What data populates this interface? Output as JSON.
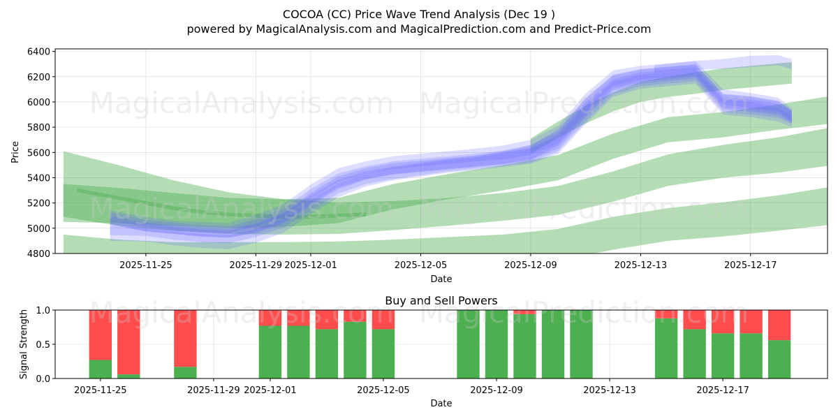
{
  "header": {
    "title": "COCOA (CC) Price Wave Trend Analysis (Dec 19 )",
    "subtitle": "powered by MagicalAnalysis.com and MagicalPrediction.com and Predict-Price.com"
  },
  "watermarks": [
    "MagicalAnalysis.com",
    "MagicalPrediction.com"
  ],
  "colors": {
    "buy": "#4caf50",
    "sell": "#ff4d4d",
    "wave_blue": "#6666ff",
    "wave_green": "#4caf50"
  },
  "chart_data": [
    {
      "type": "area",
      "xlabel": "Date",
      "ylabel": "Price",
      "ylim": [
        4800,
        6420
      ],
      "xlim": [
        -3.3,
        24.8
      ],
      "grid": true,
      "x_ticks": [
        {
          "pos": 0,
          "label": "2025-11-25"
        },
        {
          "pos": 4,
          "label": "2025-11-29"
        },
        {
          "pos": 6,
          "label": "2025-12-01"
        },
        {
          "pos": 10,
          "label": "2025-12-05"
        },
        {
          "pos": 14,
          "label": "2025-12-09"
        },
        {
          "pos": 18,
          "label": "2025-12-13"
        },
        {
          "pos": 22,
          "label": "2025-12-17"
        }
      ],
      "y_ticks": [
        4800,
        5000,
        5200,
        5400,
        5600,
        5800,
        6000,
        6200,
        6400
      ],
      "blue_bands": [
        {
          "x": [
            -1.3,
            0,
            1,
            2,
            3,
            4,
            5,
            6,
            7,
            8,
            9,
            10,
            11,
            12,
            13,
            14,
            15,
            16,
            17,
            18,
            19,
            20,
            21,
            22,
            23,
            23.5
          ],
          "y": [
            5080,
            5020,
            5000,
            4980,
            4970,
            5020,
            5100,
            5250,
            5380,
            5440,
            5480,
            5500,
            5520,
            5540,
            5560,
            5600,
            5700,
            5950,
            6150,
            6200,
            6220,
            6240,
            6000,
            5980,
            5950,
            5880
          ],
          "w": [
            90,
            90,
            90,
            90,
            90,
            100,
            110,
            120,
            110,
            100,
            100,
            100,
            100,
            100,
            110,
            120,
            140,
            150,
            120,
            110,
            110,
            110,
            120,
            120,
            110,
            100
          ]
        },
        {
          "x": [
            -1.3,
            0,
            1,
            2,
            3,
            4,
            5,
            6,
            7,
            8,
            9,
            10,
            11,
            12,
            13,
            14,
            15,
            16,
            17,
            18,
            19,
            20,
            21,
            22,
            23,
            23.5
          ],
          "y": [
            5000,
            4990,
            4960,
            4940,
            4930,
            4980,
            5060,
            5200,
            5330,
            5400,
            5440,
            5470,
            5500,
            5520,
            5550,
            5580,
            5680,
            5920,
            6120,
            6180,
            6200,
            6220,
            5980,
            5960,
            5930,
            5880
          ],
          "w": [
            110,
            100,
            100,
            100,
            100,
            100,
            110,
            120,
            110,
            100,
            100,
            100,
            100,
            100,
            110,
            120,
            140,
            150,
            120,
            110,
            110,
            110,
            120,
            120,
            110,
            100
          ]
        },
        {
          "x": [
            -1.3,
            0,
            1,
            2,
            3,
            4,
            5,
            6,
            7,
            8,
            9,
            10,
            11,
            12,
            13,
            14,
            15,
            16,
            17,
            18,
            19,
            20,
            21,
            22,
            23,
            23.5
          ],
          "y": [
            5100,
            5050,
            5020,
            5010,
            5000,
            5060,
            5140,
            5290,
            5420,
            5480,
            5520,
            5540,
            5560,
            5580,
            5600,
            5640,
            5740,
            5990,
            6190,
            6230,
            6250,
            6270,
            6040,
            6010,
            5980,
            5900
          ],
          "w": [
            80,
            80,
            80,
            80,
            80,
            90,
            100,
            110,
            110,
            100,
            100,
            100,
            100,
            100,
            110,
            120,
            140,
            150,
            120,
            110,
            110,
            110,
            120,
            120,
            110,
            100
          ]
        },
        {
          "x": [
            -1.3,
            0,
            1,
            2,
            3,
            4,
            5,
            6,
            7,
            8,
            9,
            10,
            11,
            12,
            13,
            14,
            15,
            16,
            17,
            18,
            19,
            20,
            21,
            22,
            23,
            23.5
          ],
          "y": [
            4960,
            4950,
            4920,
            4900,
            4890,
            4940,
            5020,
            5170,
            5300,
            5380,
            5430,
            5460,
            5490,
            5510,
            5540,
            5570,
            5660,
            5900,
            6100,
            6160,
            6180,
            6200,
            5960,
            5940,
            5900,
            5850
          ],
          "w": [
            120,
            110,
            110,
            110,
            110,
            110,
            110,
            120,
            110,
            100,
            100,
            100,
            100,
            100,
            110,
            120,
            140,
            150,
            120,
            110,
            110,
            110,
            120,
            120,
            110,
            100
          ]
        },
        {
          "x": [
            -1.3,
            0,
            1,
            2,
            3,
            4,
            5,
            6,
            7,
            8,
            9,
            10,
            11,
            12,
            13,
            14,
            15,
            16,
            17,
            18,
            19,
            20,
            21,
            22,
            23,
            23.5
          ],
          "y": [
            5060,
            5010,
            4990,
            4970,
            4960,
            5000,
            5080,
            5230,
            5360,
            5430,
            5470,
            5490,
            5510,
            5530,
            5560,
            5600,
            5720,
            5960,
            6160,
            6210,
            6230,
            6250,
            6010,
            5990,
            5960,
            5890
          ],
          "w": [
            70,
            70,
            70,
            70,
            70,
            80,
            90,
            100,
            100,
            90,
            90,
            90,
            90,
            90,
            100,
            110,
            130,
            140,
            110,
            100,
            100,
            100,
            110,
            110,
            100,
            90
          ]
        },
        {
          "x": [
            18.5,
            20,
            21,
            22,
            23,
            23.5
          ],
          "y": [
            6260,
            6290,
            6300,
            6320,
            6330,
            6300
          ],
          "w": [
            60,
            70,
            80,
            90,
            80,
            80
          ]
        }
      ],
      "green_bands": [
        {
          "x": [
            -3.0,
            -1,
            1,
            3,
            5,
            7,
            9,
            11,
            13,
            15,
            17,
            19,
            21,
            23,
            25
          ],
          "y": [
            5350,
            5260,
            5180,
            5120,
            5090,
            5080,
            5100,
            5130,
            5170,
            5220,
            5330,
            5460,
            5530,
            5580,
            5650
          ],
          "w": [
            520,
            480,
            400,
            330,
            280,
            250,
            230,
            220,
            220,
            230,
            240,
            250,
            260,
            280,
            300
          ]
        },
        {
          "x": [
            -3.0,
            -1,
            1,
            3,
            5,
            7,
            9,
            11,
            13,
            15,
            17,
            19,
            21,
            23,
            25
          ],
          "y": [
            5200,
            5180,
            5150,
            5120,
            5120,
            5140,
            5250,
            5330,
            5400,
            5480,
            5650,
            5780,
            5820,
            5880,
            5940
          ],
          "w": [
            300,
            280,
            260,
            240,
            220,
            200,
            200,
            200,
            200,
            200,
            200,
            200,
            200,
            200,
            220
          ]
        },
        {
          "x": [
            -3.0,
            -1,
            1,
            3,
            5,
            7,
            9,
            11,
            13,
            15,
            17,
            19,
            21,
            23,
            25
          ],
          "y": [
            4870,
            4810,
            4770,
            4760,
            4760,
            4770,
            4790,
            4810,
            4830,
            4870,
            4960,
            5030,
            5070,
            5120,
            5180
          ],
          "w": [
            160,
            200,
            240,
            260,
            260,
            250,
            240,
            240,
            240,
            250,
            260,
            260,
            270,
            280,
            300
          ]
        },
        {
          "x": [
            -2.5,
            -1,
            1,
            2,
            3,
            4,
            5,
            6,
            7,
            8
          ],
          "y": [
            5300,
            5240,
            5160,
            5130,
            5110,
            5100,
            5090,
            5090,
            5100,
            5110
          ],
          "w": [
            30,
            30,
            30,
            30,
            30,
            30,
            30,
            30,
            30,
            30
          ]
        },
        {
          "x": [
            14,
            15,
            16,
            17,
            18,
            19,
            20,
            21,
            22,
            23,
            23.5
          ],
          "y": [
            5650,
            5780,
            5900,
            6000,
            6080,
            6120,
            6150,
            6180,
            6200,
            6220,
            6230
          ],
          "w": [
            120,
            130,
            140,
            150,
            160,
            160,
            170,
            170,
            170,
            170,
            170
          ]
        }
      ]
    },
    {
      "type": "bar",
      "title": "Buy and Sell Powers",
      "xlabel": "Date",
      "ylabel": "Signal Strength",
      "ylim": [
        0,
        1
      ],
      "xlim": [
        -1.6,
        25.7
      ],
      "y_ticks": [
        {
          "value": 0,
          "label": "0.0"
        },
        {
          "value": 0.5,
          "label": "0.5"
        },
        {
          "value": 1,
          "label": "1.0"
        }
      ],
      "x_ticks": [
        {
          "pos": 0,
          "label": "2025-11-25"
        },
        {
          "pos": 4,
          "label": "2025-11-29"
        },
        {
          "pos": 6,
          "label": "2025-12-01"
        },
        {
          "pos": 10,
          "label": "2025-12-05"
        },
        {
          "pos": 14,
          "label": "2025-12-09"
        },
        {
          "pos": 18,
          "label": "2025-12-13"
        },
        {
          "pos": 22,
          "label": "2025-12-17"
        }
      ],
      "series_names": [
        "Buy",
        "Sell"
      ],
      "bars": [
        {
          "x": 0,
          "date": "2025-11-25",
          "buy": 0.27
        },
        {
          "x": 1,
          "date": "2025-11-26",
          "buy": 0.06
        },
        {
          "x": 3,
          "date": "2025-11-28",
          "buy": 0.17
        },
        {
          "x": 6,
          "date": "2025-12-01",
          "buy": 0.77
        },
        {
          "x": 7,
          "date": "2025-12-02",
          "buy": 0.77
        },
        {
          "x": 8,
          "date": "2025-12-03",
          "buy": 0.72
        },
        {
          "x": 9,
          "date": "2025-12-04",
          "buy": 0.83
        },
        {
          "x": 10,
          "date": "2025-12-05",
          "buy": 0.72
        },
        {
          "x": 13,
          "date": "2025-12-08",
          "buy": 1.0
        },
        {
          "x": 14,
          "date": "2025-12-09",
          "buy": 1.0
        },
        {
          "x": 15,
          "date": "2025-12-10",
          "buy": 0.94
        },
        {
          "x": 16,
          "date": "2025-12-11",
          "buy": 1.0
        },
        {
          "x": 17,
          "date": "2025-12-12",
          "buy": 1.0
        },
        {
          "x": 20,
          "date": "2025-12-15",
          "buy": 0.88
        },
        {
          "x": 21,
          "date": "2025-12-16",
          "buy": 0.72
        },
        {
          "x": 22,
          "date": "2025-12-17",
          "buy": 0.66
        },
        {
          "x": 23,
          "date": "2025-12-18",
          "buy": 0.66
        },
        {
          "x": 24,
          "date": "2025-12-19",
          "buy": 0.56
        }
      ]
    }
  ]
}
